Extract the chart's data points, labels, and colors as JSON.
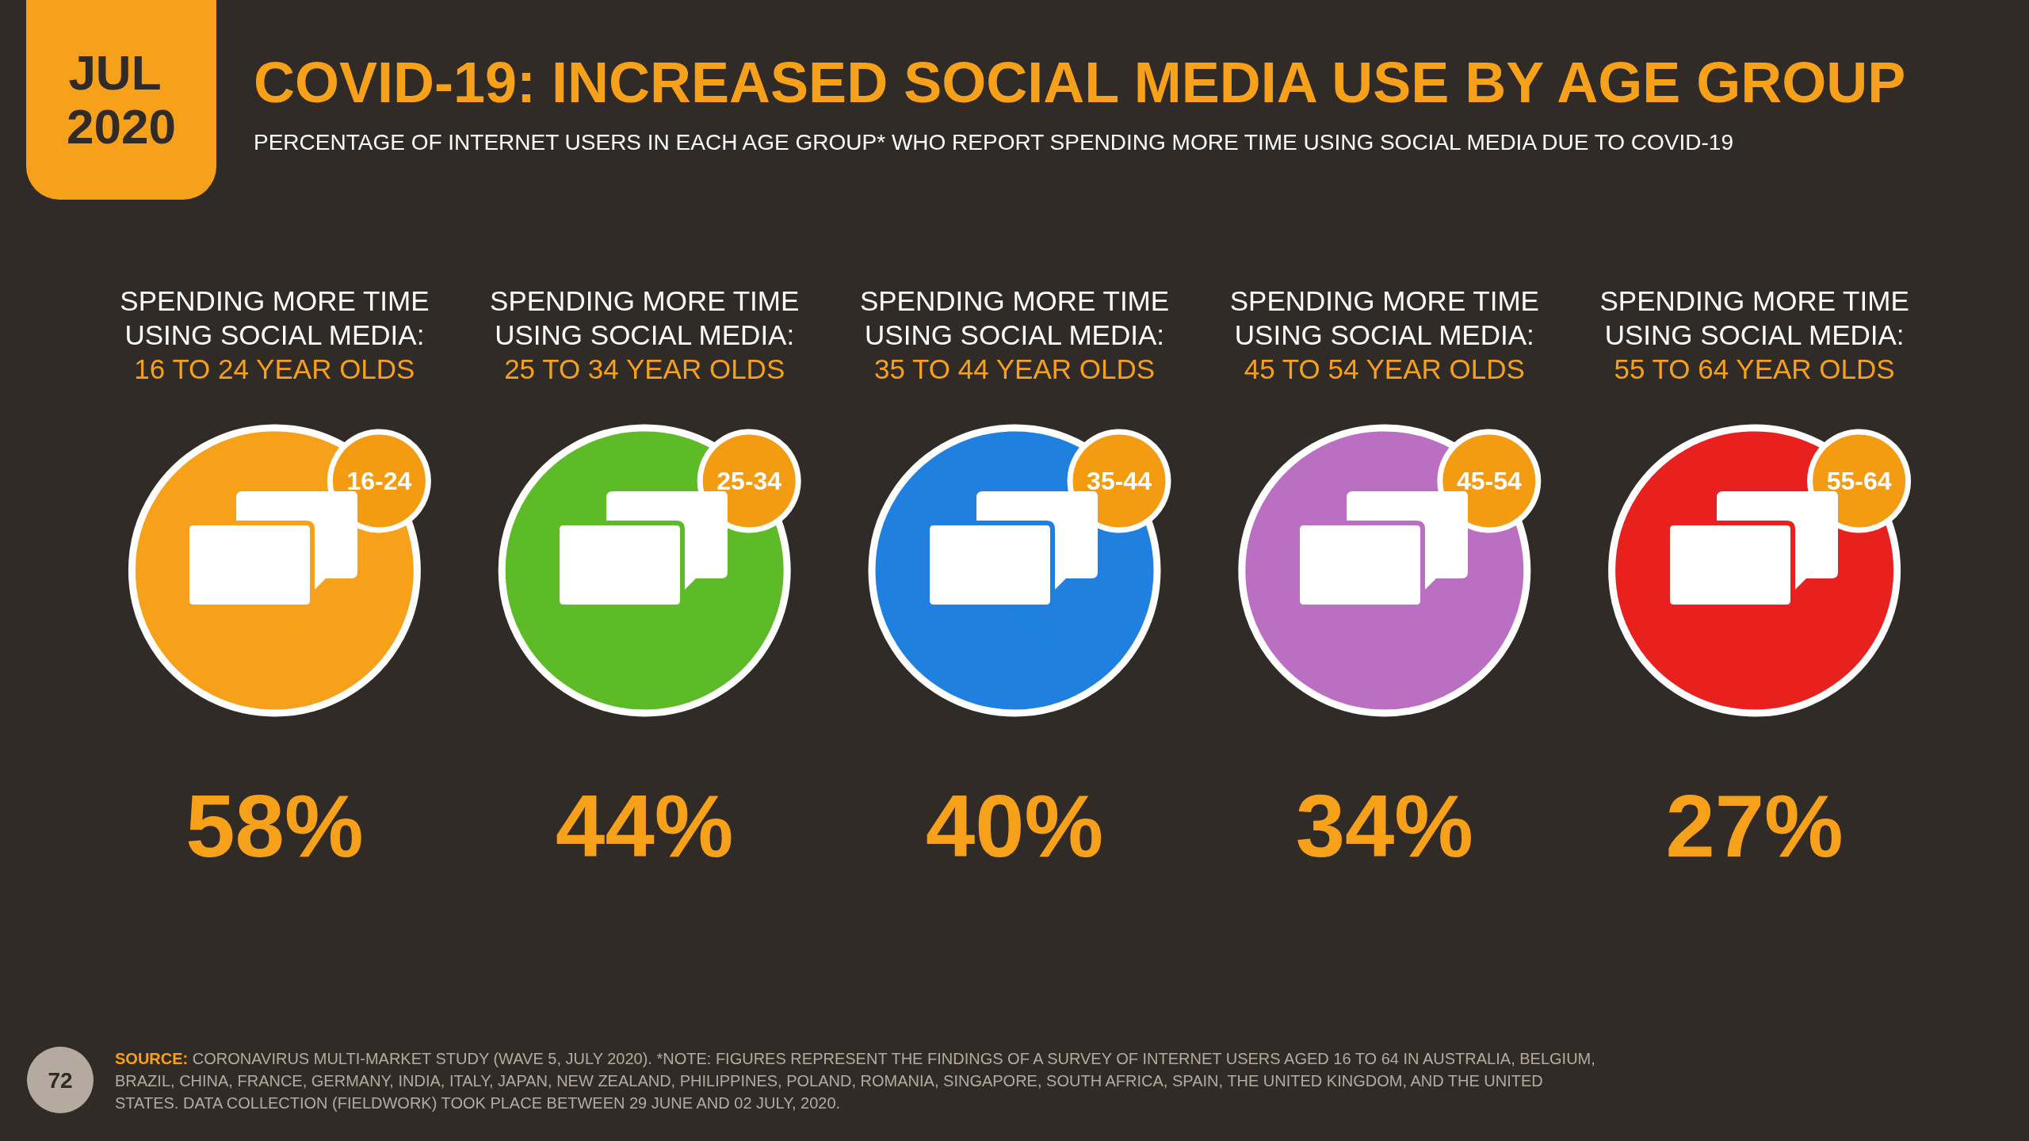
{
  "chart_data": {
    "type": "other",
    "title": "COVID-19: INCREASED SOCIAL MEDIA USE BY AGE GROUP",
    "subtitle": "PERCENTAGE OF INTERNET USERS IN EACH AGE GROUP* WHO REPORT SPENDING MORE TIME USING SOCIAL MEDIA DUE TO COVID-19",
    "categories": [
      "SPENDING MORE TIME\nUSING SOCIAL MEDIA:\n16 TO 24 YEAR OLDS",
      "SPENDING MORE TIME\nUSING SOCIAL MEDIA:\n25 TO 34 YEAR OLDS",
      "SPENDING MORE TIME\nUSING SOCIAL MEDIA:\n35 TO 44 YEAR OLDS",
      "SPENDING MORE TIME\nUSING SOCIAL MEDIA:\n45 TO 54 YEAR OLDS",
      "SPENDING MORE TIME\nUSING SOCIAL MEDIA:\n55 TO 64 YEAR OLDS"
    ],
    "values": [
      58,
      44,
      40,
      34,
      27
    ],
    "value_labels": [
      "58%",
      "44%",
      "40%",
      "34%",
      "27%"
    ],
    "colors": [
      "#f7a11a",
      "#5dbb28",
      "#1f80e0",
      "#bb6fc2",
      "#e8211f"
    ],
    "annotations": [
      "JUL 2020",
      {
        "text": "16-24",
        "x": "SPENDING MORE TIME\nUSING SOCIAL MEDIA:\n16 TO 24 YEAR OLDS"
      },
      {
        "text": "25-34",
        "x": "SPENDING MORE TIME\nUSING SOCIAL MEDIA:\n25 TO 34 YEAR OLDS"
      },
      {
        "text": "35-44",
        "x": "SPENDING MORE TIME\nUSING SOCIAL MEDIA:\n35 TO 44 YEAR OLDS"
      },
      {
        "text": "45-54",
        "x": "SPENDING MORE TIME\nUSING SOCIAL MEDIA:\n45 TO 54 YEAR OLDS"
      },
      {
        "text": "55-64",
        "x": "SPENDING MORE TIME\nUSING SOCIAL MEDIA:\n55 TO 64 YEAR OLDS"
      },
      "SOURCE: CORONAVIRUS MULTI-MARKET STUDY (WAVE 5, JULY 2020). *NOTE: FIGURES REPRESENT THE FINDINGS OF A SURVEY OF INTERNET USERS AGED 16 TO 64 IN AUSTRALIA, BELGIUM, BRAZIL, CHINA, FRANCE, GERMANY, INDIA, ITALY, JAPAN, NEW ZEALAND, PHILIPPINES, POLAND, ROMANIA, SINGAPORE, SOUTH AFRICA, SPAIN, THE UNITED KINGDOM, AND THE UNITED STATES. DATA COLLECTION (FIELDWORK) TOOK PLACE BETWEEN 29 JUNE AND 02 JULY, 2020.",
      "72"
    ]
  }
}
